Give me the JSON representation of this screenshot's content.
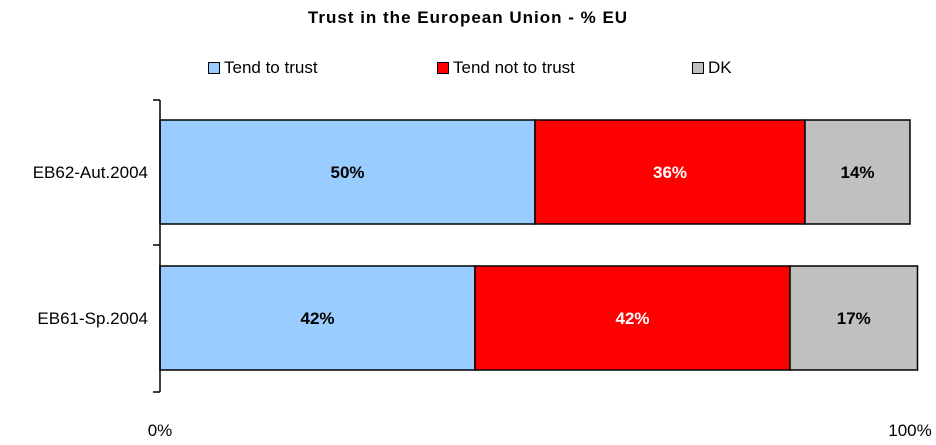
{
  "chart_data": {
    "type": "bar",
    "orientation": "horizontal",
    "stacked": true,
    "title": "Trust in the European Union - % EU",
    "categories": [
      "EB62-Aut.2004",
      "EB61-Sp.2004"
    ],
    "series": [
      {
        "name": "Tend to trust",
        "values": [
          50,
          42
        ],
        "color": "#99CCFF",
        "label_color": "#000000"
      },
      {
        "name": "Tend not to trust",
        "values": [
          36,
          42
        ],
        "color": "#FF0000",
        "label_color": "#FFFFFF"
      },
      {
        "name": "DK",
        "values": [
          14,
          17
        ],
        "color": "#C0C0C0",
        "label_color": "#000000"
      }
    ],
    "xlim": [
      0,
      100
    ],
    "x_ticks": [
      "0%",
      "100%"
    ],
    "value_suffix": "%",
    "legend_position": "top",
    "grid": false
  }
}
